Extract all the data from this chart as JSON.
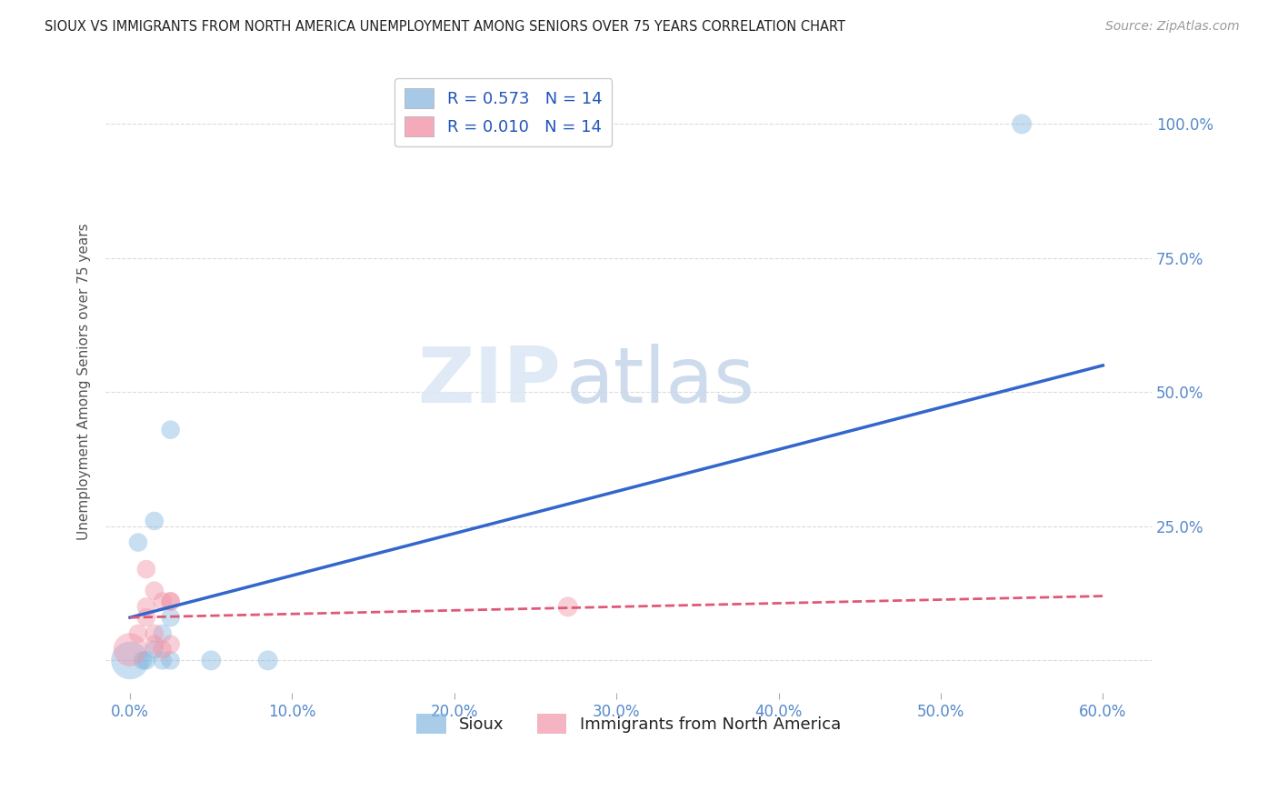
{
  "title": "SIOUX VS IMMIGRANTS FROM NORTH AMERICA UNEMPLOYMENT AMONG SENIORS OVER 75 YEARS CORRELATION CHART",
  "source": "Source: ZipAtlas.com",
  "ylabel_label": "Unemployment Among Seniors over 75 years",
  "watermark_zip": "ZIP",
  "watermark_atlas": "atlas",
  "legend_entries": [
    {
      "label": "R = 0.573   N = 14",
      "color": "#a8c8e8"
    },
    {
      "label": "R = 0.010   N = 14",
      "color": "#f4aaba"
    }
  ],
  "legend_labels": [
    "Sioux",
    "Immigrants from North America"
  ],
  "sioux_x": [
    0.0,
    0.5,
    1.0,
    0.8,
    1.5,
    2.0,
    2.5,
    2.0,
    2.5,
    2.5,
    1.5,
    5.0,
    8.5,
    55.0
  ],
  "sioux_y": [
    0.0,
    22.0,
    0.0,
    0.0,
    2.0,
    5.0,
    43.0,
    0.0,
    8.0,
    0.0,
    26.0,
    0.0,
    0.0,
    100.0
  ],
  "immigrants_x": [
    0.0,
    0.5,
    1.0,
    1.0,
    1.0,
    1.5,
    1.5,
    1.5,
    2.0,
    2.0,
    2.5,
    2.5,
    2.5,
    27.0
  ],
  "immigrants_y": [
    2.0,
    5.0,
    17.0,
    10.0,
    8.0,
    5.0,
    3.0,
    13.0,
    2.0,
    11.0,
    11.0,
    3.0,
    11.0,
    10.0
  ],
  "sioux_color": "#85b8e0",
  "immigrants_color": "#f095a8",
  "sioux_line_color": "#3366cc",
  "immigrants_line_color": "#e05878",
  "immigrants_line_dash": true,
  "bg_color": "#ffffff",
  "grid_color": "#cccccc",
  "title_color": "#222222",
  "axis_color": "#5588cc",
  "xlim": [
    -1.5,
    63.0
  ],
  "ylim": [
    -6.0,
    110.0
  ],
  "xticks": [
    0,
    10,
    20,
    30,
    40,
    50,
    60
  ],
  "xtick_labels": [
    "0.0%",
    "10.0%",
    "20.0%",
    "30.0%",
    "40.0%",
    "50.0%",
    "60.0%"
  ],
  "yticks": [
    0,
    25,
    50,
    75,
    100
  ],
  "ytick_labels_right": [
    "",
    "25.0%",
    "50.0%",
    "75.0%",
    "100.0%"
  ],
  "sioux_line_x": [
    0,
    60
  ],
  "sioux_line_y": [
    8.0,
    55.0
  ],
  "immigrants_line_x": [
    0,
    60
  ],
  "immigrants_line_y": [
    8.0,
    12.0
  ]
}
